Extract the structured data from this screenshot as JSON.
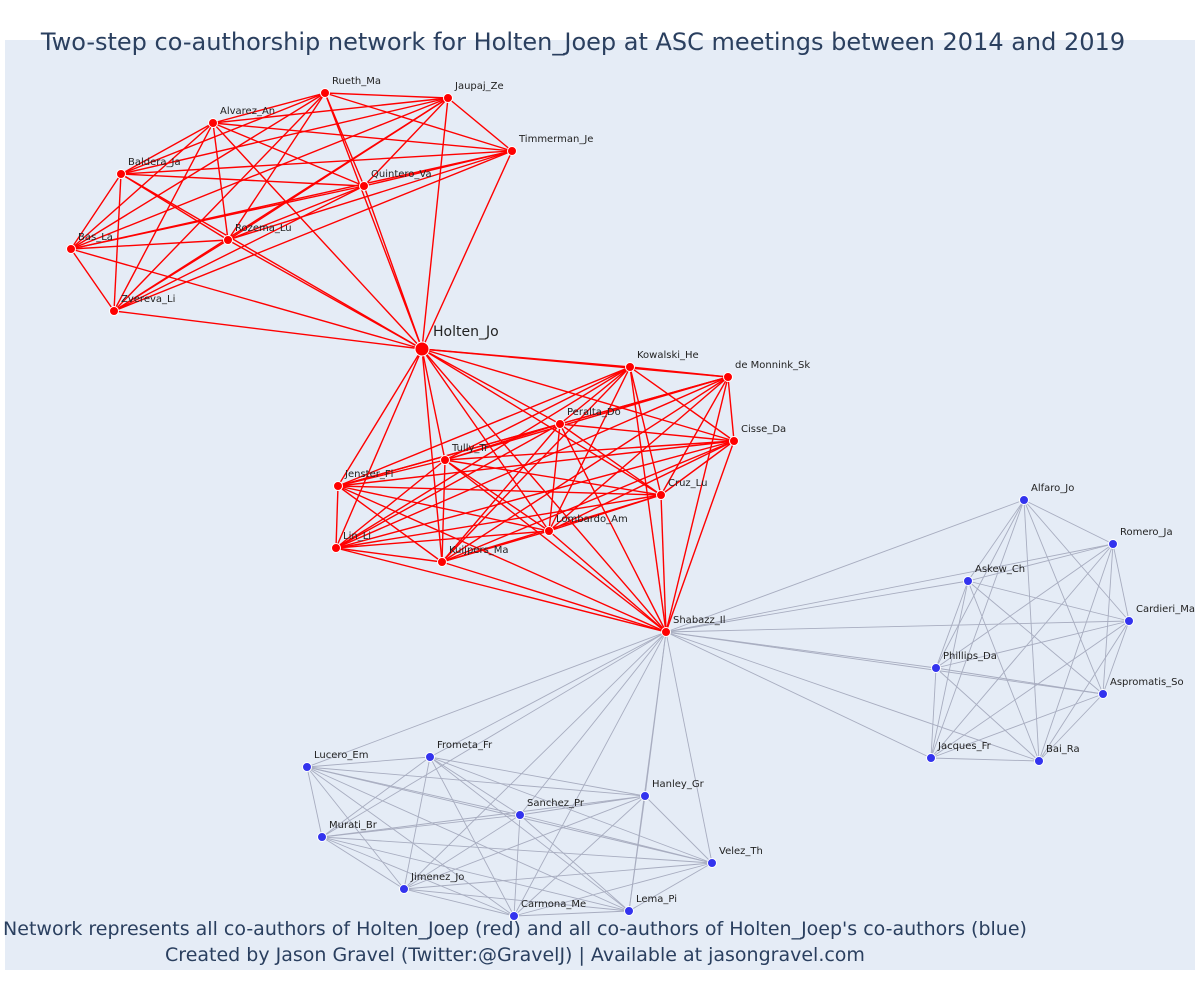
{
  "title": "Two-step co-authorship network for Holten_Joep at ASC meetings between 2014 and 2019",
  "caption_line1": "Network represents all co-authors of Holten_Joep (red) and all co-authors of Holten_Joep's co-authors (blue)",
  "caption_line2": "Created by Jason Gravel (Twitter:@GravelJ) | Available at jasongravel.com",
  "colors": {
    "red": "#ff0000",
    "blue": "#3333ee",
    "blue_edge": "#a8adc0",
    "background": "#e5ecf6"
  },
  "network": {
    "center": "Holten_Jo",
    "red_nodes": [
      "Rueth_Ma",
      "Jaupaj_Ze",
      "Alvarez_An",
      "Timmerman_Je",
      "Baldera_Ja",
      "Quintero_Va",
      "Bas_La",
      "Rozema_Lu",
      "Zvereva_Li",
      "Holten_Jo",
      "Kowalski_He",
      "de Monnink_Sk",
      "Peralta_Do",
      "Cisse_Da",
      "Tully_Tr",
      "Jenster_Fl",
      "Cruz_Lu",
      "Lombardo_Am",
      "Lin_Li",
      "Kuijpers_Ma",
      "Shabazz_Il"
    ],
    "blue_nodes": [
      "Alfaro_Jo",
      "Romero_Ja",
      "Askew_Ch",
      "Cardieri_Ma",
      "Phillips_Da",
      "Aspromatis_So",
      "Jacques_Fr",
      "Bai_Ra",
      "Lucero_Em",
      "Frometa_Fr",
      "Hanley_Gr",
      "Sanchez_Pr",
      "Murati_Br",
      "Velez_Th",
      "Jimenez_Jo",
      "Lema_Pi",
      "Carmona_Me"
    ],
    "clusters": [
      {
        "color": "red",
        "members": [
          "Rueth_Ma",
          "Jaupaj_Ze",
          "Alvarez_An",
          "Timmerman_Je",
          "Baldera_Ja",
          "Quintero_Va",
          "Bas_La",
          "Rozema_Lu",
          "Zvereva_Li",
          "Holten_Jo"
        ]
      },
      {
        "color": "red",
        "members": [
          "Holten_Jo",
          "Kowalski_He",
          "de Monnink_Sk",
          "Peralta_Do",
          "Cisse_Da",
          "Tully_Tr",
          "Jenster_Fl",
          "Cruz_Lu",
          "Lombardo_Am",
          "Lin_Li",
          "Kuijpers_Ma",
          "Shabazz_Il"
        ]
      },
      {
        "color": "blue",
        "members": [
          "Shabazz_Il",
          "Alfaro_Jo",
          "Romero_Ja",
          "Askew_Ch",
          "Cardieri_Ma",
          "Phillips_Da",
          "Aspromatis_So",
          "Jacques_Fr",
          "Bai_Ra"
        ]
      },
      {
        "color": "blue",
        "members": [
          "Shabazz_Il",
          "Lucero_Em",
          "Frometa_Fr",
          "Hanley_Gr",
          "Sanchez_Pr",
          "Murati_Br",
          "Velez_Th",
          "Jimenez_Jo",
          "Lema_Pi",
          "Carmona_Me"
        ]
      }
    ]
  }
}
